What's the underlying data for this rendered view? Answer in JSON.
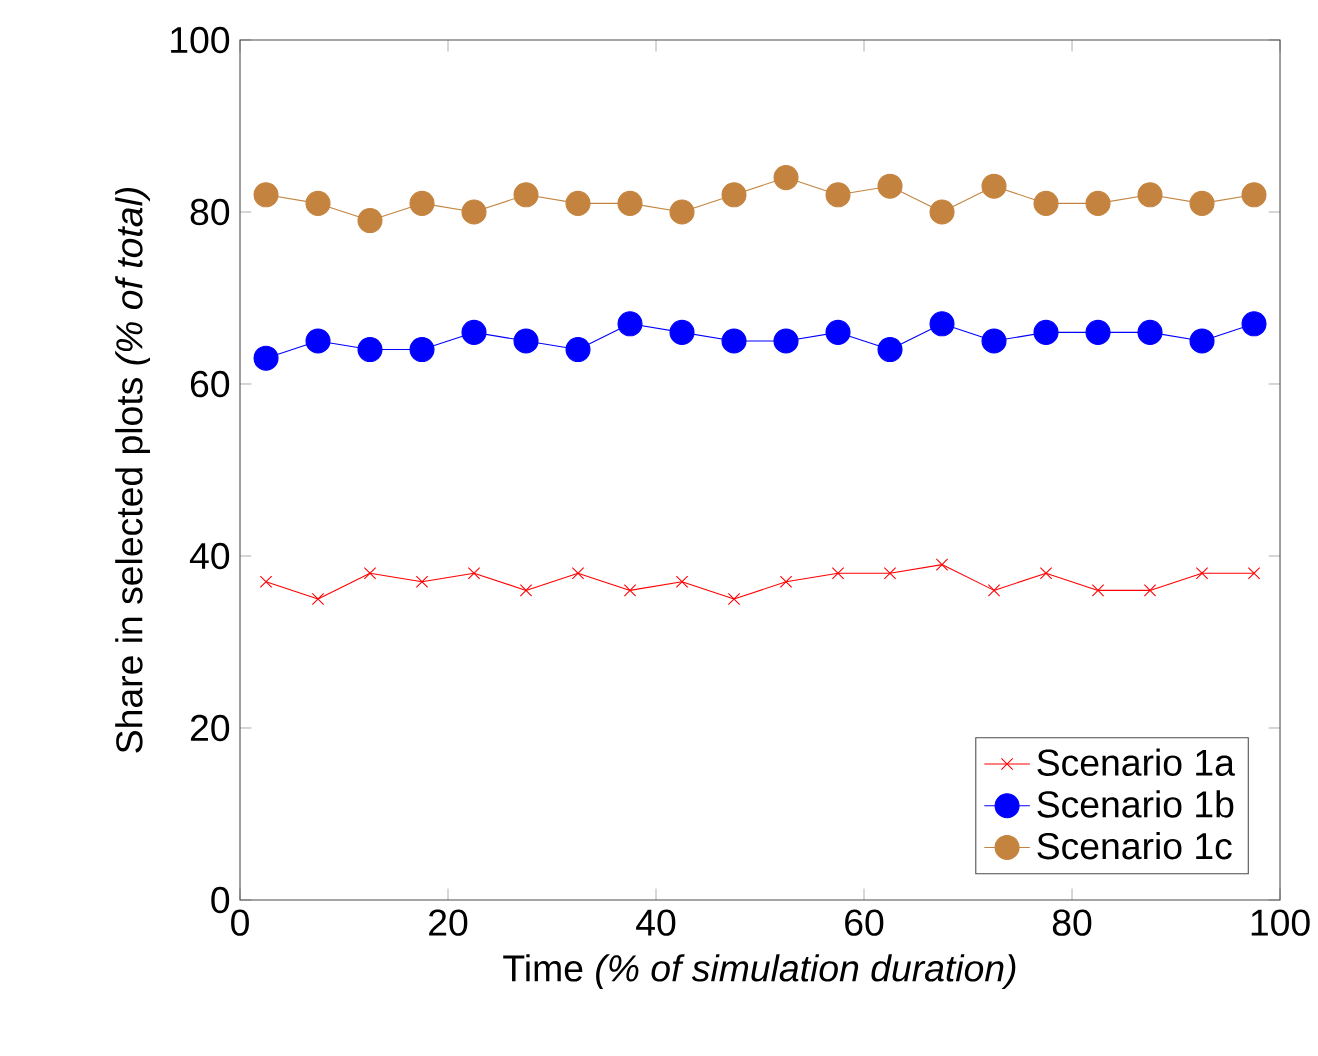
{
  "chart_data": {
    "type": "line",
    "xlabel": "Time *(% of simulation duration)*",
    "ylabel": "Share in selected plots *(% of total)*",
    "x": [
      2.5,
      7.5,
      12.5,
      17.5,
      22.5,
      27.5,
      32.5,
      37.5,
      42.5,
      47.5,
      52.5,
      57.5,
      62.5,
      67.5,
      72.5,
      77.5,
      82.5,
      87.5,
      92.5,
      97.5
    ],
    "series": [
      {
        "name": "Scenario 1a",
        "color": "#ff0000",
        "marker": "cross",
        "values": [
          37,
          35,
          38,
          37,
          38,
          36,
          38,
          36,
          37,
          35,
          37,
          38,
          38,
          39,
          36,
          38,
          36,
          36,
          38,
          38
        ]
      },
      {
        "name": "Scenario 1b",
        "color": "#0000ff",
        "marker": "circle",
        "values": [
          63,
          65,
          64,
          64,
          66,
          65,
          64,
          67,
          66,
          65,
          65,
          66,
          64,
          67,
          65,
          66,
          66,
          66,
          65,
          67
        ]
      },
      {
        "name": "Scenario 1c",
        "color": "#c4843f",
        "marker": "circle",
        "values": [
          82,
          81,
          79,
          81,
          80,
          82,
          81,
          81,
          80,
          82,
          84,
          82,
          83,
          80,
          83,
          81,
          81,
          82,
          81,
          82
        ]
      }
    ],
    "xlim": [
      0,
      100
    ],
    "ylim": [
      0,
      100
    ],
    "xticks": [
      0,
      20,
      40,
      60,
      80,
      100
    ],
    "yticks": [
      0,
      20,
      40,
      60,
      80,
      100
    ],
    "legend": "bottom right",
    "grid": false
  }
}
